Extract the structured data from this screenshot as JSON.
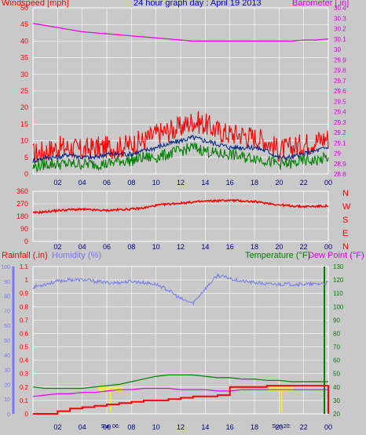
{
  "header": {
    "left_title": "Windspeed [mph]",
    "center_title": "24 hour graph day : April 19 2013",
    "right_title": "Barometer [.in]"
  },
  "colors": {
    "background": "#c9c9c9",
    "grid": "#ffffff",
    "wind_gust": "#ff0000",
    "wind_avg": "#002080",
    "wind_low": "#008000",
    "barometer": "#e000e0",
    "direction": "#ff0000",
    "rainfall": "#ff0000",
    "humidity": "#7a7aee",
    "temperature": "#008000",
    "dew_point": "#e000e0",
    "title": "#0000c0",
    "sun": "#ffff00"
  },
  "x_ticks": [
    "02",
    "04",
    "06",
    "08",
    "10",
    "12",
    "14",
    "16",
    "18",
    "20",
    "22",
    "00"
  ],
  "chart_data": [
    {
      "type": "line",
      "title": "24 hour graph day : April 19 2013",
      "xlabel": "",
      "ylabel": "Windspeed [mph]",
      "y2label": "Barometer [.in]",
      "ylim": [
        0,
        50
      ],
      "y2lim": [
        28.8,
        30.4
      ],
      "y_ticks": [
        "0",
        "5",
        "10",
        "15",
        "20",
        "25",
        "30",
        "35",
        "40",
        "45",
        "50"
      ],
      "y2_ticks": [
        "28.8",
        "28.9",
        "29",
        "29.1",
        "29.2",
        "29.3",
        "29.4",
        "29.5",
        "29.6",
        "29.7",
        "29.8",
        "29.9",
        "30",
        "30.1",
        "30.2",
        "30.3",
        "30.4"
      ],
      "x": [
        0,
        1,
        2,
        3,
        4,
        5,
        6,
        7,
        8,
        9,
        10,
        11,
        12,
        13,
        14,
        15,
        16,
        17,
        18,
        19,
        20,
        21,
        22,
        23,
        24
      ],
      "series": [
        {
          "name": "Windspeed gust",
          "axis": "left",
          "values": [
            6,
            7,
            8,
            8,
            7,
            8,
            8,
            8,
            9,
            10,
            12,
            13,
            14,
            16,
            15,
            13,
            12,
            12,
            11,
            10,
            7,
            8,
            9,
            10,
            11
          ]
        },
        {
          "name": "Windspeed average",
          "axis": "left",
          "values": [
            4,
            5,
            5,
            6,
            5,
            5,
            6,
            6,
            6,
            7,
            8,
            9,
            10,
            11,
            10,
            9,
            8,
            8,
            8,
            7,
            5,
            5,
            6,
            7,
            8
          ]
        },
        {
          "name": "Windspeed low",
          "axis": "left",
          "values": [
            2,
            3,
            3,
            3,
            3,
            3,
            3,
            4,
            4,
            5,
            5,
            6,
            7,
            8,
            7,
            6,
            6,
            5,
            5,
            4,
            3,
            3,
            4,
            4,
            5
          ]
        },
        {
          "name": "Barometer",
          "axis": "right",
          "values": [
            30.25,
            30.23,
            30.21,
            30.19,
            30.17,
            30.16,
            30.15,
            30.14,
            30.13,
            30.12,
            30.11,
            30.1,
            30.09,
            30.08,
            30.08,
            30.08,
            30.08,
            30.08,
            30.08,
            30.08,
            30.08,
            30.08,
            30.09,
            30.09,
            30.1
          ]
        }
      ]
    },
    {
      "type": "line",
      "title": "",
      "xlabel": "",
      "ylabel": "",
      "ylim": [
        0,
        360
      ],
      "y_ticks": [
        "0",
        "90",
        "180",
        "270",
        "360"
      ],
      "compass_labels": [
        "N",
        "W",
        "S",
        "E",
        "N"
      ],
      "x": [
        0,
        1,
        2,
        3,
        4,
        5,
        6,
        7,
        8,
        9,
        10,
        11,
        12,
        13,
        14,
        15,
        16,
        17,
        18,
        19,
        20,
        21,
        22,
        23,
        24
      ],
      "series": [
        {
          "name": "Wind direction",
          "values": [
            205,
            212,
            222,
            228,
            230,
            225,
            222,
            228,
            232,
            240,
            258,
            268,
            275,
            282,
            288,
            292,
            295,
            290,
            285,
            275,
            262,
            255,
            250,
            252,
            255
          ]
        }
      ]
    },
    {
      "type": "line",
      "title": "",
      "xlabel": "",
      "ylabel": "Rainfall (.in)",
      "y_humidity_label": "Humidity (%)",
      "y2label": "Temperature (°F)",
      "y2label_b": "Dew Point (°F)",
      "ylim": [
        0,
        1.1
      ],
      "humidity_lim": [
        0,
        100
      ],
      "y2lim": [
        20,
        130
      ],
      "y_ticks": [
        "0",
        "0.1",
        "0.2",
        "0.3",
        "0.4",
        "0.5",
        "0.6",
        "0.7",
        "0.8",
        "0.9",
        "1",
        "1.1"
      ],
      "humidity_ticks": [
        "0",
        "10",
        "20",
        "30",
        "40",
        "50",
        "60",
        "70",
        "80",
        "90",
        "100"
      ],
      "y2_ticks": [
        "20",
        "30",
        "40",
        "50",
        "60",
        "70",
        "80",
        "90",
        "100",
        "110",
        "120",
        "130"
      ],
      "sun_labels": [
        "Sun 06:",
        "Sun 20:"
      ],
      "x": [
        0,
        1,
        2,
        3,
        4,
        5,
        6,
        7,
        8,
        9,
        10,
        11,
        12,
        13,
        14,
        15,
        16,
        17,
        18,
        19,
        20,
        21,
        22,
        23,
        24
      ],
      "series": [
        {
          "name": "Rainfall",
          "axis": "left",
          "values": [
            0,
            0,
            0.02,
            0.04,
            0.05,
            0.06,
            0.07,
            0.08,
            0.09,
            0.1,
            0.1,
            0.11,
            0.12,
            0.13,
            0.13,
            0.14,
            0.2,
            0.2,
            0.2,
            0.21,
            0.21,
            0.21,
            0.21,
            0.21,
            0
          ]
        },
        {
          "name": "Humidity",
          "axis": "humidity",
          "values": [
            86,
            88,
            90,
            91,
            91,
            90,
            89,
            89,
            90,
            89,
            88,
            84,
            78,
            75,
            85,
            94,
            92,
            90,
            89,
            88,
            88,
            88,
            88,
            88,
            89
          ]
        },
        {
          "name": "Temperature",
          "axis": "right",
          "values": [
            40,
            39,
            39,
            39,
            39,
            40,
            41,
            42,
            44,
            46,
            48,
            49,
            49,
            49,
            48,
            47,
            47,
            46,
            46,
            45,
            45,
            44,
            44,
            44,
            44
          ]
        },
        {
          "name": "Dew Point",
          "axis": "right",
          "values": [
            33,
            34,
            35,
            35,
            36,
            36,
            37,
            38,
            38,
            39,
            39,
            39,
            38,
            38,
            38,
            37,
            37,
            38,
            38,
            38,
            38,
            38,
            38,
            38,
            38
          ]
        }
      ]
    }
  ]
}
